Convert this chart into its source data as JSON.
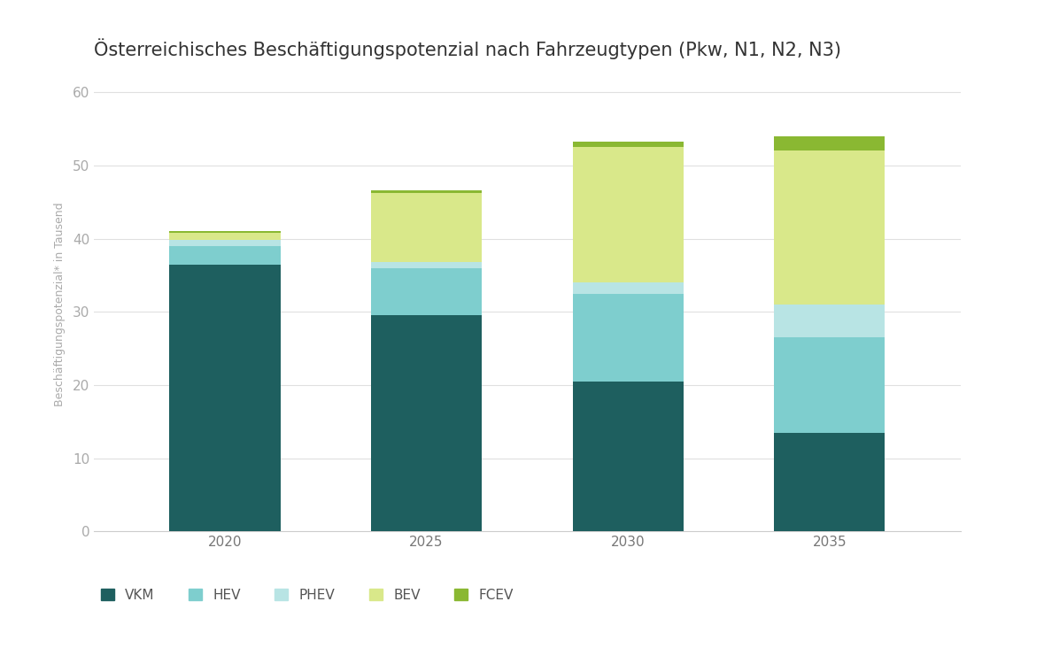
{
  "title": "Österreichisches Beschäftigungspotenzial nach Fahrzeugtypen (Pkw, N1, N2, N3)",
  "ylabel": "Beschäftigungspotenzial* in Tausend",
  "years": [
    2020,
    2025,
    2030,
    2035
  ],
  "segments": {
    "VKM": [
      36.5,
      29.5,
      20.5,
      13.5
    ],
    "HEV": [
      2.5,
      6.5,
      12.0,
      13.0
    ],
    "PHEV": [
      0.8,
      0.8,
      1.5,
      4.5
    ],
    "BEV": [
      1.0,
      9.5,
      18.5,
      21.0
    ],
    "FCEV": [
      0.3,
      0.3,
      0.8,
      2.0
    ]
  },
  "colors": {
    "VKM": "#1e5f5f",
    "HEV": "#7ecece",
    "PHEV": "#b8e4e4",
    "BEV": "#d9e88a",
    "FCEV": "#8ab832"
  },
  "legend_labels": [
    "VKM",
    "HEV",
    "PHEV",
    "BEV",
    "FCEV"
  ],
  "ylim": [
    0,
    62
  ],
  "yticks": [
    0,
    10,
    20,
    30,
    40,
    50,
    60
  ],
  "background_color": "#ffffff",
  "title_fontsize": 15,
  "legend_fontsize": 11,
  "tick_fontsize": 11,
  "bar_width": 0.55
}
